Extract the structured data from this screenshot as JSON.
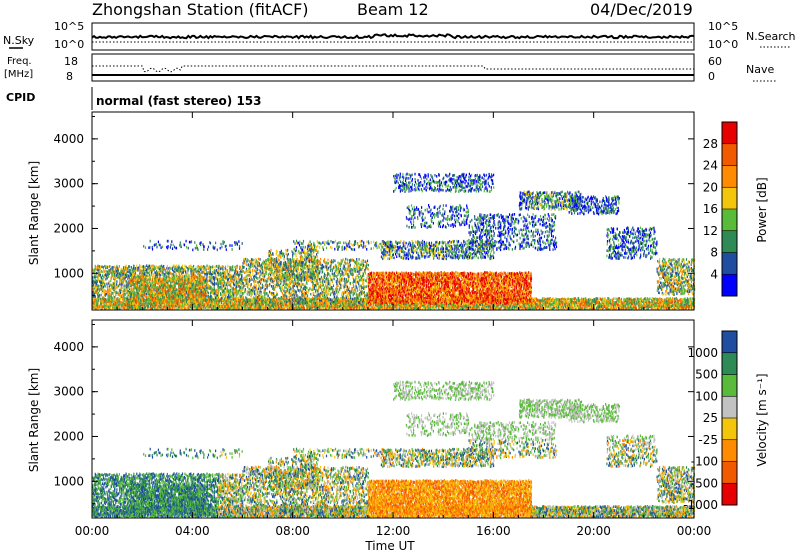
{
  "header": {
    "station": "Zhongshan Station (fitACF)",
    "beam": "Beam 12",
    "date": "04/Dec/2019"
  },
  "nsky_panel": {
    "left_label": "N.Sky",
    "right_label": "N.Search",
    "left_ticks": [
      "10^5",
      "10^0"
    ],
    "right_ticks": [
      "10^5",
      "10^0"
    ]
  },
  "freq_panel": {
    "left_label_1": "Freq.",
    "left_label_2": "[MHz]",
    "left_ticks": [
      "18",
      "8"
    ],
    "right_label": "Nave",
    "right_ticks": [
      "60",
      "0"
    ]
  },
  "cpid": {
    "label": "CPID",
    "text": "normal (fast stereo) 153"
  },
  "colors": {
    "power": [
      "#0000ff",
      "#1f4ea0",
      "#2f8b55",
      "#59bb3a",
      "#f4c60b",
      "#ff8c00",
      "#f25a00",
      "#e60000"
    ],
    "velocity": [
      "#1f4ea0",
      "#2f8b55",
      "#59bb3a",
      "#c2c2c2",
      "#f4c60b",
      "#ff8c00",
      "#f25a00",
      "#e60000"
    ]
  },
  "chart_data": [
    {
      "type": "heatmap",
      "name": "power",
      "ylabel": "Slant Range [km]",
      "yticks": [
        "1000",
        "2000",
        "3000",
        "4000"
      ],
      "ylim": [
        180,
        4600
      ],
      "colorbar_label": "Power [dB]",
      "colorbar_ticks": [
        "4",
        "8",
        "12",
        "16",
        "20",
        "24",
        "28"
      ]
    },
    {
      "type": "heatmap",
      "name": "velocity",
      "ylabel": "Slant Range [km]",
      "yticks": [
        "1000",
        "2000",
        "3000",
        "4000"
      ],
      "ylim": [
        180,
        4600
      ],
      "colorbar_label": "Velocity [m s⁻¹]",
      "colorbar_ticks": [
        "1000",
        "500",
        "100",
        "25",
        "-25",
        "-100",
        "-500",
        "-1000"
      ]
    }
  ],
  "xaxis": {
    "label": "Time UT",
    "ticks": [
      "00:00",
      "04:00",
      "08:00",
      "12:00",
      "16:00",
      "20:00",
      "00:00"
    ]
  }
}
